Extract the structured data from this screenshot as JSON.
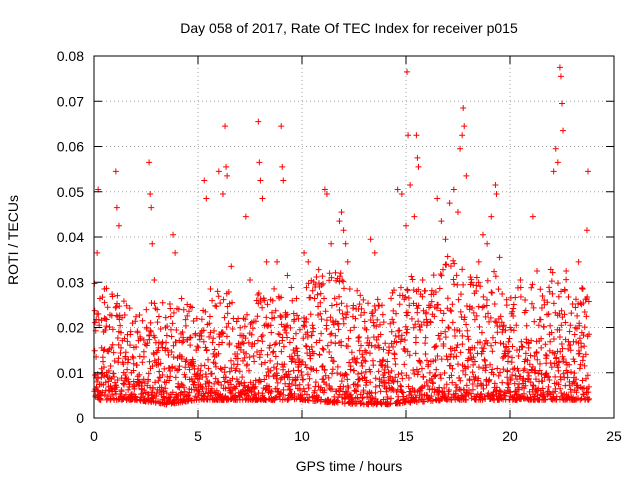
{
  "chart_data": {
    "type": "scatter",
    "title": "Day 058 of 2017, Rate Of TEC Index for receiver p015",
    "xlabel": "GPS time / hours",
    "ylabel": "ROTI / TECUs",
    "xlim": [
      0,
      25
    ],
    "ylim": [
      0,
      0.08
    ],
    "x_ticks": [
      {
        "value": 0,
        "label": "0"
      },
      {
        "value": 5,
        "label": "5"
      },
      {
        "value": 10,
        "label": "10"
      },
      {
        "value": 15,
        "label": "15"
      },
      {
        "value": 20,
        "label": "20"
      },
      {
        "value": 25,
        "label": "25"
      }
    ],
    "y_ticks": [
      {
        "value": 0,
        "label": "0"
      },
      {
        "value": 0.01,
        "label": "0.01"
      },
      {
        "value": 0.02,
        "label": "0.02"
      },
      {
        "value": 0.03,
        "label": "0.03"
      },
      {
        "value": 0.04,
        "label": "0.04"
      },
      {
        "value": 0.05,
        "label": "0.05"
      },
      {
        "value": 0.06,
        "label": "0.06"
      },
      {
        "value": 0.07,
        "label": "0.07"
      },
      {
        "value": 0.08,
        "label": "0.08"
      }
    ],
    "grid": true,
    "series": [
      {
        "name": "ROTI",
        "color": "#ff0000",
        "marker": "plus",
        "points": [
          [
            0.05,
            0.0095
          ],
          [
            0.1,
            0.0135
          ],
          [
            0.15,
            0.0365
          ],
          [
            0.2,
            0.0505
          ],
          [
            0.25,
            0.0205
          ],
          [
            0.35,
            0.0075
          ],
          [
            0.5,
            0.0285
          ],
          [
            0.6,
            0.0095
          ],
          [
            0.8,
            0.0115
          ],
          [
            0.9,
            0.0065
          ],
          [
            1.05,
            0.0545
          ],
          [
            1.1,
            0.0465
          ],
          [
            1.2,
            0.0425
          ],
          [
            1.3,
            0.0155
          ],
          [
            1.5,
            0.0095
          ],
          [
            1.7,
            0.0075
          ],
          [
            1.9,
            0.0105
          ],
          [
            2.1,
            0.0085
          ],
          [
            2.4,
            0.0135
          ],
          [
            2.6,
            0.0085
          ],
          [
            2.65,
            0.0565
          ],
          [
            2.7,
            0.0495
          ],
          [
            2.75,
            0.0465
          ],
          [
            2.8,
            0.0385
          ],
          [
            2.9,
            0.0305
          ],
          [
            3.1,
            0.0155
          ],
          [
            3.3,
            0.0095
          ],
          [
            3.5,
            0.0055
          ],
          [
            3.7,
            0.0195
          ],
          [
            3.8,
            0.0405
          ],
          [
            3.9,
            0.0365
          ],
          [
            4.0,
            0.0105
          ],
          [
            4.2,
            0.0075
          ],
          [
            4.4,
            0.0125
          ],
          [
            4.6,
            0.0085
          ],
          [
            4.8,
            0.0115
          ],
          [
            5.1,
            0.0095
          ],
          [
            5.3,
            0.0525
          ],
          [
            5.4,
            0.0485
          ],
          [
            5.6,
            0.0285
          ],
          [
            5.8,
            0.0135
          ],
          [
            6.0,
            0.0545
          ],
          [
            6.2,
            0.0495
          ],
          [
            6.3,
            0.0645
          ],
          [
            6.35,
            0.0555
          ],
          [
            6.4,
            0.0535
          ],
          [
            6.6,
            0.0335
          ],
          [
            6.8,
            0.0105
          ],
          [
            7.0,
            0.0075
          ],
          [
            7.2,
            0.0165
          ],
          [
            7.3,
            0.0445
          ],
          [
            7.5,
            0.0305
          ],
          [
            7.7,
            0.0125
          ],
          [
            7.9,
            0.0655
          ],
          [
            7.95,
            0.0565
          ],
          [
            8.0,
            0.0525
          ],
          [
            8.1,
            0.0485
          ],
          [
            8.3,
            0.0345
          ],
          [
            8.5,
            0.0205
          ],
          [
            8.7,
            0.0095
          ],
          [
            8.8,
            0.0345
          ],
          [
            9.0,
            0.0645
          ],
          [
            9.05,
            0.0555
          ],
          [
            9.1,
            0.0525
          ],
          [
            9.3,
            0.0315
          ],
          [
            9.5,
            0.0125
          ],
          [
            9.7,
            0.0085
          ],
          [
            9.9,
            0.0195
          ],
          [
            10.1,
            0.0365
          ],
          [
            10.3,
            0.0345
          ],
          [
            10.5,
            0.0205
          ],
          [
            10.7,
            0.0105
          ],
          [
            10.9,
            0.0275
          ],
          [
            11.1,
            0.0505
          ],
          [
            11.2,
            0.0495
          ],
          [
            11.4,
            0.0385
          ],
          [
            11.6,
            0.0165
          ],
          [
            11.8,
            0.0435
          ],
          [
            11.9,
            0.0455
          ],
          [
            12.0,
            0.0415
          ],
          [
            12.1,
            0.0385
          ],
          [
            12.2,
            0.0345
          ],
          [
            12.3,
            0.0285
          ],
          [
            12.5,
            0.0105
          ],
          [
            12.7,
            0.0085
          ],
          [
            12.9,
            0.0115
          ],
          [
            13.1,
            0.0195
          ],
          [
            13.3,
            0.0395
          ],
          [
            13.5,
            0.0365
          ],
          [
            13.7,
            0.0155
          ],
          [
            13.9,
            0.0095
          ],
          [
            14.1,
            0.0125
          ],
          [
            14.3,
            0.0165
          ],
          [
            14.6,
            0.0505
          ],
          [
            14.8,
            0.0495
          ],
          [
            15.0,
            0.0425
          ],
          [
            15.05,
            0.0765
          ],
          [
            15.1,
            0.0625
          ],
          [
            15.2,
            0.0515
          ],
          [
            15.4,
            0.0445
          ],
          [
            15.5,
            0.0625
          ],
          [
            15.55,
            0.0575
          ],
          [
            15.6,
            0.0555
          ],
          [
            15.8,
            0.0305
          ],
          [
            16.0,
            0.0205
          ],
          [
            16.2,
            0.0125
          ],
          [
            16.4,
            0.0095
          ],
          [
            16.5,
            0.0485
          ],
          [
            16.7,
            0.0435
          ],
          [
            16.9,
            0.0395
          ],
          [
            17.1,
            0.0475
          ],
          [
            17.3,
            0.0505
          ],
          [
            17.5,
            0.0455
          ],
          [
            17.6,
            0.0595
          ],
          [
            17.7,
            0.0625
          ],
          [
            17.75,
            0.0685
          ],
          [
            17.8,
            0.0645
          ],
          [
            17.9,
            0.0535
          ],
          [
            18.1,
            0.0295
          ],
          [
            18.3,
            0.0155
          ],
          [
            18.5,
            0.0345
          ],
          [
            18.7,
            0.0405
          ],
          [
            18.9,
            0.0385
          ],
          [
            19.1,
            0.0445
          ],
          [
            19.3,
            0.0515
          ],
          [
            19.35,
            0.0495
          ],
          [
            19.5,
            0.0355
          ],
          [
            19.7,
            0.0205
          ],
          [
            19.9,
            0.0125
          ],
          [
            20.1,
            0.0095
          ],
          [
            20.3,
            0.0205
          ],
          [
            20.5,
            0.0305
          ],
          [
            20.7,
            0.0125
          ],
          [
            20.9,
            0.0165
          ],
          [
            21.1,
            0.0445
          ],
          [
            21.3,
            0.0325
          ],
          [
            21.5,
            0.0155
          ],
          [
            21.7,
            0.0095
          ],
          [
            21.9,
            0.0185
          ],
          [
            22.1,
            0.0545
          ],
          [
            22.2,
            0.0595
          ],
          [
            22.3,
            0.0565
          ],
          [
            22.4,
            0.0775
          ],
          [
            22.45,
            0.0755
          ],
          [
            22.5,
            0.0695
          ],
          [
            22.55,
            0.0635
          ],
          [
            22.7,
            0.0325
          ],
          [
            22.9,
            0.0205
          ],
          [
            23.1,
            0.0125
          ],
          [
            23.3,
            0.0345
          ],
          [
            23.5,
            0.0285
          ],
          [
            23.7,
            0.0415
          ],
          [
            23.75,
            0.0545
          ],
          [
            23.8,
            0.0185
          ]
        ],
        "band_lower_envelope": [
          [
            0,
            0.004
          ],
          [
            2,
            0.004
          ],
          [
            3.5,
            0.003
          ],
          [
            5,
            0.004
          ],
          [
            8,
            0.004
          ],
          [
            10,
            0.004
          ],
          [
            12.5,
            0.003
          ],
          [
            14,
            0.003
          ],
          [
            17,
            0.004
          ],
          [
            20,
            0.004
          ],
          [
            22,
            0.004
          ],
          [
            23.8,
            0.004
          ]
        ],
        "band_upper_envelope": [
          [
            0,
            0.03
          ],
          [
            1,
            0.028
          ],
          [
            2,
            0.024
          ],
          [
            3,
            0.026
          ],
          [
            4,
            0.03
          ],
          [
            5,
            0.024
          ],
          [
            6,
            0.03
          ],
          [
            7,
            0.026
          ],
          [
            8,
            0.028
          ],
          [
            9,
            0.03
          ],
          [
            10,
            0.028
          ],
          [
            11,
            0.034
          ],
          [
            12,
            0.032
          ],
          [
            13,
            0.028
          ],
          [
            14,
            0.026
          ],
          [
            15,
            0.032
          ],
          [
            16,
            0.03
          ],
          [
            17,
            0.036
          ],
          [
            18,
            0.032
          ],
          [
            19,
            0.034
          ],
          [
            20,
            0.028
          ],
          [
            21,
            0.03
          ],
          [
            22,
            0.034
          ],
          [
            23,
            0.03
          ],
          [
            23.8,
            0.028
          ]
        ]
      }
    ]
  }
}
